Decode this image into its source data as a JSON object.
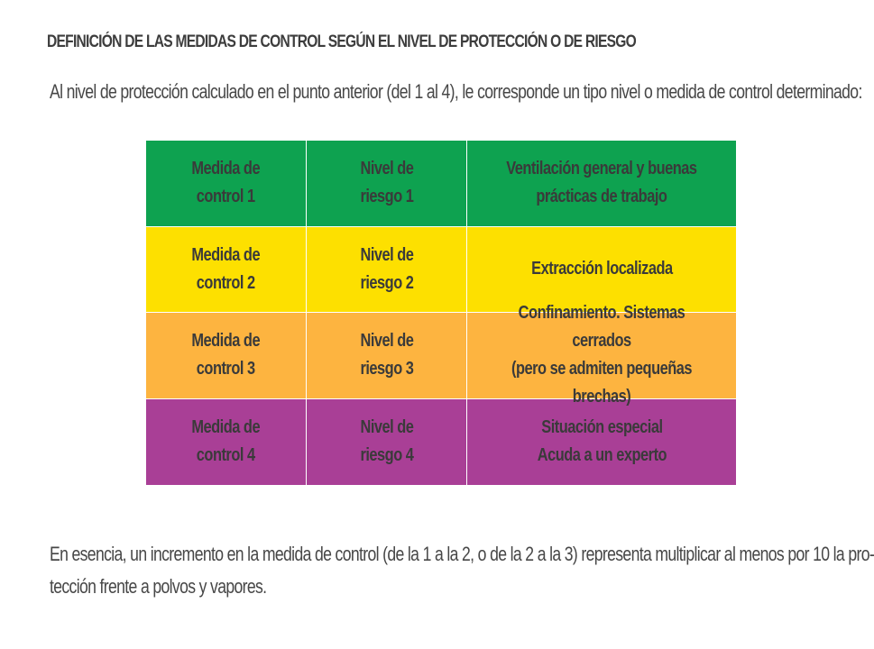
{
  "heading": "DEFINICIÓN DE LAS MEDIDAS DE CONTROL SEGÚN EL NIVEL DE PROTECCIÓN O DE RIESGO",
  "intro": "Al nivel de protección calculado en el punto anterior (del 1 al 4), le corresponde un tipo nivel o medida de control determinado:",
  "colors": {
    "row1": "#0ea250",
    "row2": "#fde000",
    "row3": "#fdb440",
    "row4": "#a93f96"
  },
  "table": {
    "rows": [
      {
        "measure": "Medida de\ncontrol 1",
        "risk": "Nivel de\nriesgo 1",
        "description": "Ventilación general y buenas\nprácticas de trabajo"
      },
      {
        "measure": "Medida de\ncontrol 2",
        "risk": "Nivel de\nriesgo 2",
        "description": "Extracción localizada"
      },
      {
        "measure": "Medida de\ncontrol 3",
        "risk": "Nivel de\nriesgo 3",
        "description": "Confinamiento. Sistemas cerrados\n(pero se admiten pequeñas brechas)"
      },
      {
        "measure": "Medida de\ncontrol 4",
        "risk": "Nivel de\nriesgo 4",
        "description": "Situación especial\nAcuda a un experto"
      }
    ]
  },
  "footer": {
    "line1": "En esencia, un incremento en la medida de control (de la 1 a la 2, o de la 2 a la 3) representa multiplicar al menos por 10 la pro-",
    "line2": "tección frente a polvos y vapores."
  }
}
